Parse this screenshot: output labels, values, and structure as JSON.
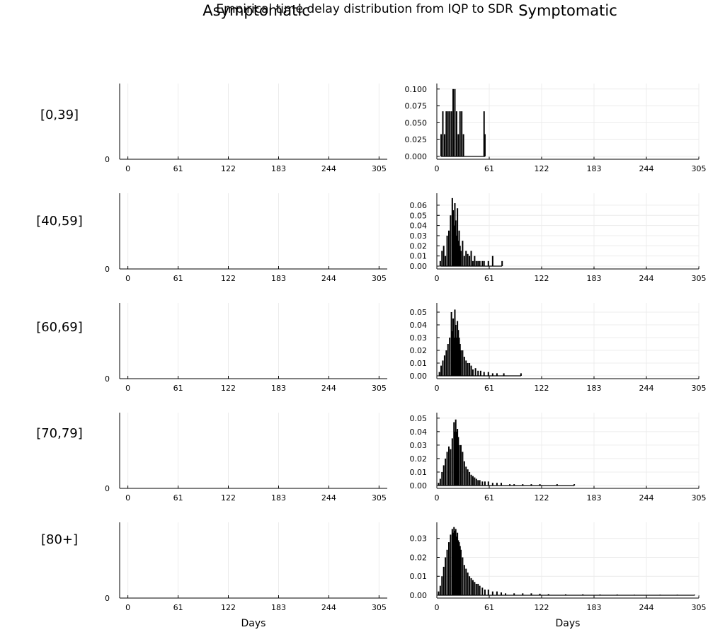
{
  "figure": {
    "title": "Empirical time delay distribution from IQP to SDR",
    "column_titles": [
      "Asymptomatic",
      "Symptomatic"
    ],
    "row_labels": [
      "[0,39]",
      "[40,59]",
      "[60,69]",
      "[70,79]",
      "[80+]"
    ],
    "xlabel": "Days"
  },
  "chart_data": [
    {
      "type": "bar",
      "panel": "Asymptomatic [0,39]",
      "x_ticks": [
        0,
        61,
        122,
        183,
        244,
        305
      ],
      "xlim": [
        -10,
        315
      ],
      "y_ticks": [
        0
      ],
      "y_tick_labels": [
        "0"
      ],
      "grid": true,
      "values": []
    },
    {
      "type": "bar",
      "panel": "Symptomatic [0,39]",
      "x_ticks": [
        0,
        61,
        122,
        183,
        244,
        305
      ],
      "xlim": [
        0,
        305
      ],
      "y_ticks": [
        0.0,
        0.025,
        0.05,
        0.075,
        0.1
      ],
      "y_tick_labels": [
        "0.000",
        "0.025",
        "0.050",
        "0.075",
        "0.100"
      ],
      "ylim": [
        0,
        0.104
      ],
      "grid": true,
      "x": [
        5,
        7,
        9,
        11,
        13,
        15,
        17,
        19,
        21,
        23,
        25,
        27,
        29,
        31,
        55,
        56
      ],
      "values": [
        0.033,
        0.067,
        0.033,
        0.067,
        0.067,
        0.067,
        0.067,
        0.1,
        0.1,
        0.067,
        0.033,
        0.067,
        0.067,
        0.033,
        0.067,
        0.033
      ]
    },
    {
      "type": "bar",
      "panel": "Asymptomatic [40,59]",
      "x_ticks": [
        0,
        61,
        122,
        183,
        244,
        305
      ],
      "xlim": [
        -10,
        315
      ],
      "y_ticks": [
        0
      ],
      "y_tick_labels": [
        "0"
      ],
      "grid": true,
      "values": []
    },
    {
      "type": "bar",
      "panel": "Symptomatic [40,59]",
      "x_ticks": [
        0,
        61,
        122,
        183,
        244,
        305
      ],
      "xlim": [
        0,
        305
      ],
      "y_ticks": [
        0.0,
        0.01,
        0.02,
        0.03,
        0.04,
        0.05,
        0.06
      ],
      "y_tick_labels": [
        "0.00",
        "0.01",
        "0.02",
        "0.03",
        "0.04",
        "0.05",
        "0.06"
      ],
      "ylim": [
        0,
        0.069
      ],
      "grid": true,
      "x": [
        4,
        6,
        8,
        10,
        12,
        14,
        16,
        18,
        19,
        20,
        21,
        22,
        23,
        24,
        25,
        26,
        27,
        28,
        30,
        32,
        34,
        36,
        38,
        40,
        42,
        44,
        46,
        48,
        50,
        53,
        55,
        60,
        65,
        76
      ],
      "values": [
        0.005,
        0.015,
        0.02,
        0.01,
        0.03,
        0.035,
        0.05,
        0.067,
        0.055,
        0.04,
        0.062,
        0.045,
        0.03,
        0.057,
        0.025,
        0.035,
        0.02,
        0.015,
        0.025,
        0.01,
        0.015,
        0.012,
        0.01,
        0.015,
        0.005,
        0.01,
        0.005,
        0.005,
        0.005,
        0.005,
        0.005,
        0.005,
        0.01,
        0.005
      ]
    },
    {
      "type": "bar",
      "panel": "Asymptomatic [60,69]",
      "x_ticks": [
        0,
        61,
        122,
        183,
        244,
        305
      ],
      "xlim": [
        -10,
        315
      ],
      "y_ticks": [
        0
      ],
      "y_tick_labels": [
        "0"
      ],
      "grid": true,
      "values": []
    },
    {
      "type": "bar",
      "panel": "Symptomatic [60,69]",
      "x_ticks": [
        0,
        61,
        122,
        183,
        244,
        305
      ],
      "xlim": [
        0,
        305
      ],
      "y_ticks": [
        0.0,
        0.01,
        0.02,
        0.03,
        0.04,
        0.05
      ],
      "y_tick_labels": [
        "0.00",
        "0.01",
        "0.02",
        "0.03",
        "0.04",
        "0.05"
      ],
      "ylim": [
        0,
        0.055
      ],
      "grid": true,
      "x": [
        3,
        5,
        7,
        9,
        11,
        13,
        15,
        17,
        18,
        19,
        20,
        21,
        22,
        23,
        24,
        25,
        26,
        27,
        28,
        30,
        32,
        34,
        36,
        38,
        40,
        42,
        45,
        48,
        51,
        55,
        60,
        65,
        70,
        78,
        98
      ],
      "values": [
        0.003,
        0.008,
        0.012,
        0.016,
        0.02,
        0.025,
        0.03,
        0.05,
        0.035,
        0.045,
        0.03,
        0.052,
        0.04,
        0.03,
        0.043,
        0.036,
        0.03,
        0.025,
        0.02,
        0.02,
        0.015,
        0.012,
        0.01,
        0.01,
        0.008,
        0.005,
        0.006,
        0.004,
        0.004,
        0.003,
        0.003,
        0.002,
        0.002,
        0.002,
        0.002
      ]
    },
    {
      "type": "bar",
      "panel": "Asymptomatic [70,79]",
      "x_ticks": [
        0,
        61,
        122,
        183,
        244,
        305
      ],
      "xlim": [
        -10,
        315
      ],
      "y_ticks": [
        0
      ],
      "y_tick_labels": [
        "0"
      ],
      "grid": true,
      "values": []
    },
    {
      "type": "bar",
      "panel": "Symptomatic [70,79]",
      "x_ticks": [
        0,
        61,
        122,
        183,
        244,
        305
      ],
      "xlim": [
        0,
        305
      ],
      "y_ticks": [
        0.0,
        0.01,
        0.02,
        0.03,
        0.04,
        0.05
      ],
      "y_tick_labels": [
        "0.00",
        "0.01",
        "0.02",
        "0.03",
        "0.04",
        "0.05"
      ],
      "ylim": [
        0,
        0.052
      ],
      "grid": true,
      "x": [
        2,
        4,
        6,
        8,
        10,
        12,
        14,
        16,
        18,
        20,
        21,
        22,
        23,
        24,
        25,
        26,
        28,
        30,
        32,
        34,
        36,
        38,
        40,
        42,
        44,
        46,
        48,
        50,
        53,
        56,
        60,
        65,
        70,
        75,
        85,
        90,
        100,
        110,
        120,
        140,
        160
      ],
      "values": [
        0.002,
        0.005,
        0.01,
        0.015,
        0.02,
        0.025,
        0.029,
        0.027,
        0.035,
        0.047,
        0.04,
        0.049,
        0.04,
        0.042,
        0.036,
        0.03,
        0.03,
        0.025,
        0.018,
        0.014,
        0.012,
        0.01,
        0.008,
        0.007,
        0.006,
        0.005,
        0.004,
        0.004,
        0.003,
        0.003,
        0.003,
        0.002,
        0.002,
        0.002,
        0.001,
        0.001,
        0.001,
        0.001,
        0.001,
        0.001,
        0.001
      ]
    },
    {
      "type": "bar",
      "panel": "Asymptomatic [80+]",
      "x_ticks": [
        0,
        61,
        122,
        183,
        244,
        305
      ],
      "xlim": [
        -10,
        315
      ],
      "y_ticks": [
        0
      ],
      "y_tick_labels": [
        "0"
      ],
      "grid": true,
      "values": []
    },
    {
      "type": "bar",
      "panel": "Symptomatic [80+]",
      "x_ticks": [
        0,
        61,
        122,
        183,
        244,
        305
      ],
      "xlim": [
        0,
        305
      ],
      "y_ticks": [
        0.0,
        0.01,
        0.02,
        0.03
      ],
      "y_tick_labels": [
        "0.00",
        "0.01",
        "0.02",
        "0.03"
      ],
      "ylim": [
        0,
        0.037
      ],
      "grid": true,
      "x": [
        2,
        4,
        6,
        8,
        10,
        12,
        14,
        16,
        18,
        19,
        20,
        21,
        22,
        23,
        24,
        25,
        26,
        27,
        28,
        30,
        32,
        34,
        36,
        38,
        40,
        42,
        44,
        46,
        48,
        50,
        53,
        56,
        60,
        65,
        70,
        75,
        80,
        90,
        100,
        110,
        120,
        130,
        150,
        170,
        190,
        210,
        230,
        260,
        280,
        300
      ],
      "values": [
        0.002,
        0.005,
        0.01,
        0.015,
        0.02,
        0.024,
        0.028,
        0.032,
        0.035,
        0.033,
        0.036,
        0.034,
        0.035,
        0.031,
        0.033,
        0.029,
        0.028,
        0.026,
        0.024,
        0.02,
        0.016,
        0.014,
        0.012,
        0.01,
        0.009,
        0.008,
        0.007,
        0.006,
        0.006,
        0.005,
        0.004,
        0.003,
        0.003,
        0.002,
        0.002,
        0.0015,
        0.001,
        0.001,
        0.001,
        0.001,
        0.0008,
        0.0006,
        0.0005,
        0.0005,
        0.0004,
        0.0004,
        0.0003,
        0.0003,
        0.0003,
        0.0003
      ]
    }
  ]
}
